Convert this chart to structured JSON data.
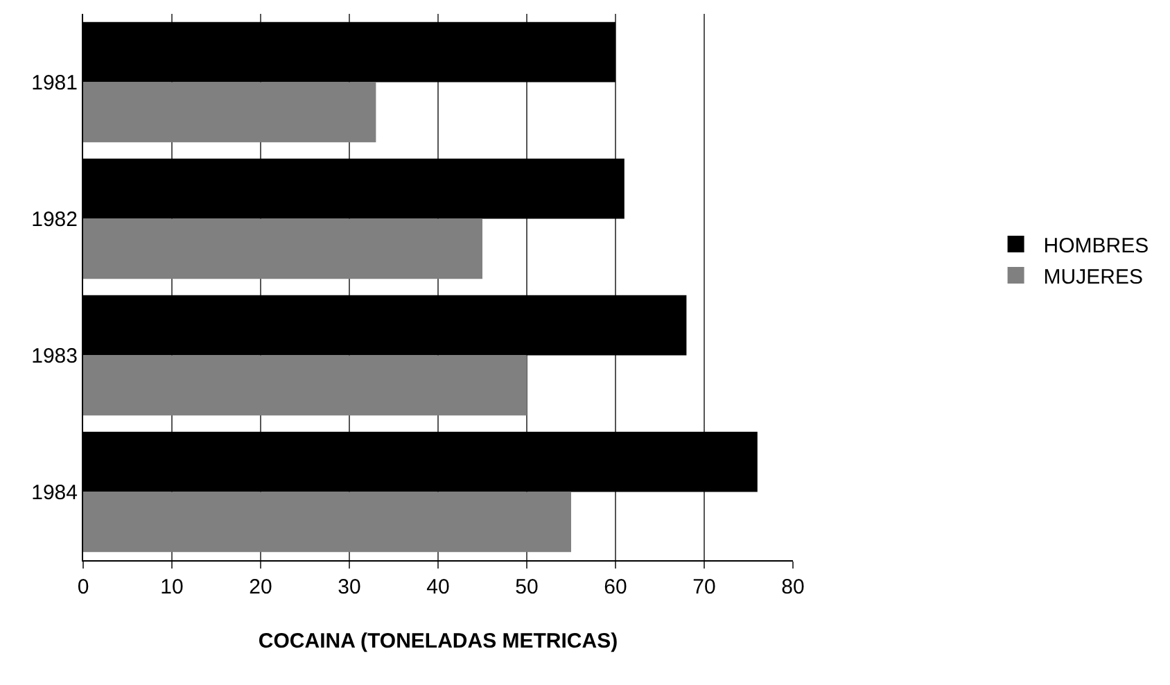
{
  "chart_data": {
    "type": "bar",
    "orientation": "horizontal",
    "xlabel": "COCAINA (TONELADAS METRICAS)",
    "categories": [
      "1981",
      "1982",
      "1983",
      "1984"
    ],
    "series": [
      {
        "name": "HOMBRES",
        "color": "#000000",
        "values": [
          60,
          61,
          68,
          76
        ]
      },
      {
        "name": "MUJERES",
        "color": "#808080",
        "values": [
          33,
          45,
          50,
          55
        ]
      }
    ],
    "xlim": [
      0,
      80
    ],
    "xticks": [
      0,
      10,
      20,
      30,
      40,
      50,
      60,
      70,
      80
    ],
    "grid": "x",
    "legend": "right"
  }
}
